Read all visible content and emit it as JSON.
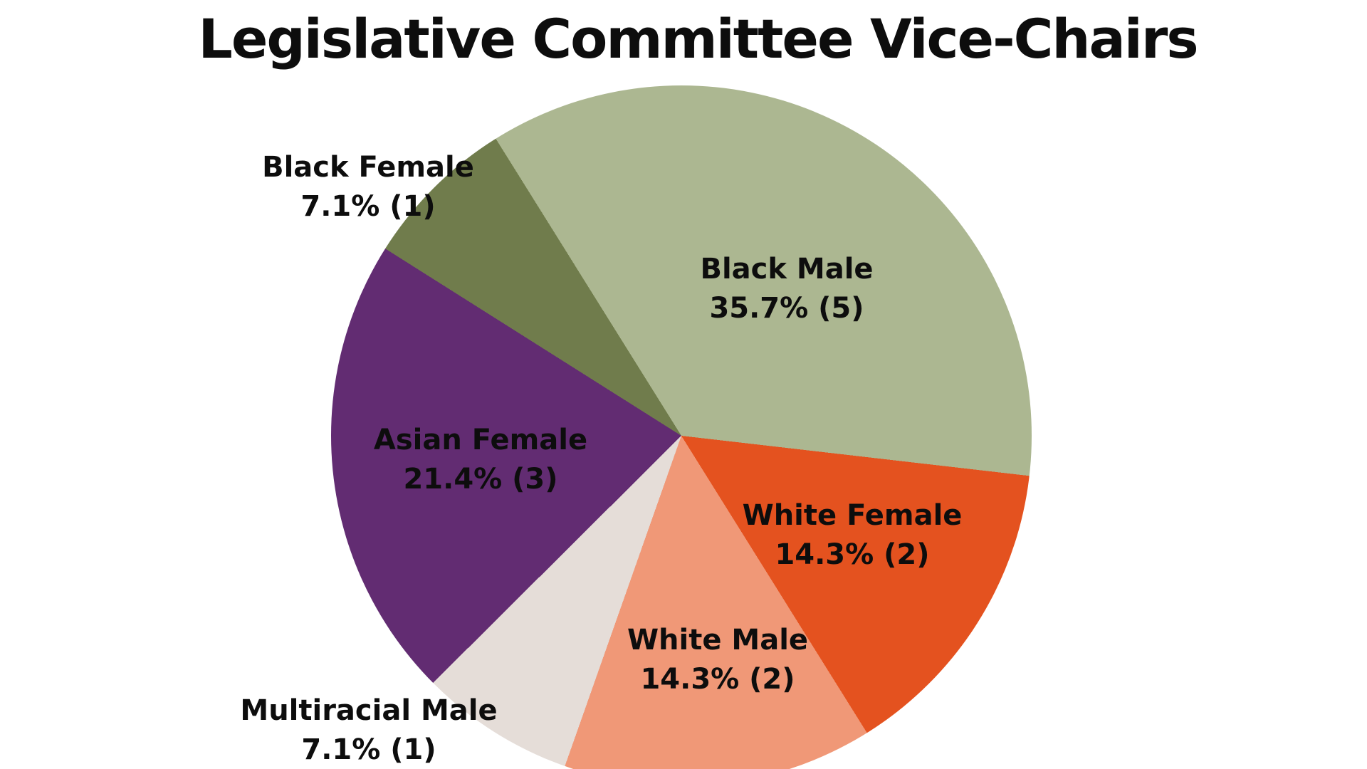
{
  "title": "Legislative Committee Vice-Chairs",
  "chart_data": {
    "type": "pie",
    "title": "Legislative Committee Vice-Chairs",
    "total_count": 14,
    "start_angle_deg": -32,
    "direction": "clockwise",
    "legend": "none",
    "label_style": "name, percent and count inside or beside each slice",
    "slices": [
      {
        "label": "Black Male",
        "percent": 35.7,
        "count": 5,
        "display": "35.7% (5)",
        "color": "#ACB791"
      },
      {
        "label": "White Female",
        "percent": 14.3,
        "count": 2,
        "display": "14.3% (2)",
        "color": "#E4521F"
      },
      {
        "label": "White Male",
        "percent": 14.3,
        "count": 2,
        "display": "14.3% (2)",
        "color": "#F09877"
      },
      {
        "label": "Multiracial Male",
        "percent": 7.1,
        "count": 1,
        "display": "7.1% (1)",
        "color": "#E5DDD8"
      },
      {
        "label": "Asian Female",
        "percent": 21.4,
        "count": 3,
        "display": "21.4% (3)",
        "color": "#622C72"
      },
      {
        "label": "Black Female",
        "percent": 7.1,
        "count": 1,
        "display": "7.1% (1)",
        "color": "#707C4C"
      }
    ]
  }
}
